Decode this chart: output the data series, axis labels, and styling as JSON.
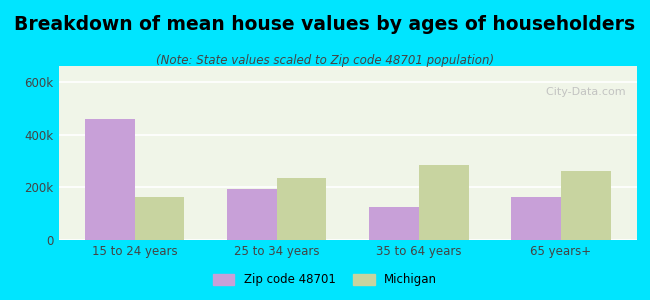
{
  "title": "Breakdown of mean house values by ages of householders",
  "subtitle": "(Note: State values scaled to Zip code 48701 population)",
  "categories": [
    "15 to 24 years",
    "25 to 34 years",
    "35 to 64 years",
    "65 years+"
  ],
  "zip_values": [
    460000,
    193000,
    125000,
    165000
  ],
  "michigan_values": [
    163000,
    237000,
    285000,
    263000
  ],
  "zip_color": "#c8a0d8",
  "michigan_color": "#c8d4a0",
  "background_color": "#00e5ff",
  "plot_bg": "#f0f5e8",
  "ylim": [
    0,
    660000
  ],
  "yticks": [
    0,
    200000,
    400000,
    600000
  ],
  "ytick_labels": [
    "0",
    "200k",
    "400k",
    "600k"
  ],
  "legend_zip": "Zip code 48701",
  "legend_michigan": "Michigan",
  "bar_width": 0.35,
  "title_fontsize": 13.5,
  "subtitle_fontsize": 8.5,
  "tick_fontsize": 8.5
}
